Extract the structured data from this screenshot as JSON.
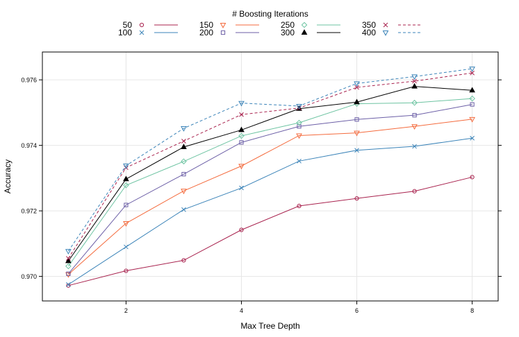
{
  "chart_data": {
    "type": "line",
    "title": "",
    "xlabel": "Max Tree Depth",
    "ylabel": "Accuracy",
    "legend_title": "# Boosting Iterations",
    "legend_placement": "top",
    "x": [
      1,
      2,
      3,
      4,
      5,
      6,
      7,
      8
    ],
    "xlim": [
      0.55,
      8.45
    ],
    "ylim": [
      0.96925,
      0.97685
    ],
    "x_ticks": [
      2,
      4,
      6,
      8
    ],
    "x_tick_labels": [
      "2",
      "4",
      "6",
      "8"
    ],
    "y_ticks": [
      0.97,
      0.972,
      0.974,
      0.976
    ],
    "y_tick_labels": [
      "0.970",
      "0.972",
      "0.974",
      "0.976"
    ],
    "grid": true,
    "series": [
      {
        "name": "50",
        "color": "#a8214d",
        "marker": "circle",
        "dash": false,
        "values": [
          0.96972,
          0.97017,
          0.97049,
          0.97142,
          0.97215,
          0.97238,
          0.9726,
          0.97303
        ]
      },
      {
        "name": "100",
        "color": "#3a83b8",
        "marker": "x",
        "dash": false,
        "values": [
          0.96975,
          0.9709,
          0.97204,
          0.9727,
          0.97352,
          0.97385,
          0.97397,
          0.97422
        ]
      },
      {
        "name": "150",
        "color": "#f46a3c",
        "marker": "triangle-down",
        "dash": false,
        "values": [
          0.97006,
          0.97162,
          0.97261,
          0.97337,
          0.9743,
          0.97438,
          0.97458,
          0.9748
        ]
      },
      {
        "name": "200",
        "color": "#6b5ea6",
        "marker": "square",
        "dash": false,
        "values": [
          0.97008,
          0.97218,
          0.97312,
          0.97409,
          0.97458,
          0.97479,
          0.97492,
          0.97525
        ]
      },
      {
        "name": "250",
        "color": "#6cc3a1",
        "marker": "diamond",
        "dash": false,
        "values": [
          0.97031,
          0.97278,
          0.97351,
          0.97429,
          0.97469,
          0.97527,
          0.9753,
          0.97543
        ]
      },
      {
        "name": "300",
        "color": "#000000",
        "marker": "triangle-up",
        "dash": false,
        "values": [
          0.97047,
          0.97297,
          0.97395,
          0.97447,
          0.97512,
          0.97532,
          0.9758,
          0.97568
        ]
      },
      {
        "name": "350",
        "color": "#a8214d",
        "marker": "x",
        "dash": true,
        "values": [
          0.97055,
          0.97332,
          0.97413,
          0.97494,
          0.97514,
          0.97577,
          0.97596,
          0.97621
        ]
      },
      {
        "name": "400",
        "color": "#3a83b8",
        "marker": "triangle-down",
        "dash": true,
        "values": [
          0.97077,
          0.97338,
          0.97452,
          0.97529,
          0.9752,
          0.97589,
          0.9761,
          0.97634
        ]
      }
    ]
  }
}
